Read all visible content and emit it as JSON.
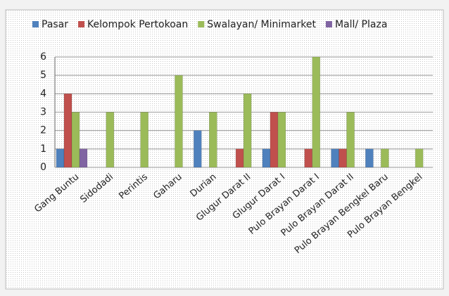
{
  "chart_data": {
    "type": "bar",
    "categories": [
      "Gang Buntu",
      "Sidodadi",
      "Perintis",
      "Gaharu",
      "Durian",
      "Glugur Darat II",
      "Glugur Darat I",
      "Pulo Brayan Darat I",
      "Pulo Brayan Darat II",
      "Pulo Brayan Bengkel Baru",
      "Pulo Brayan Bengkel"
    ],
    "series": [
      {
        "name": "Pasar",
        "color": "#4f81bd",
        "values": [
          1,
          0,
          0,
          0,
          2,
          0,
          1,
          0,
          1,
          1,
          0
        ]
      },
      {
        "name": "Kelompok Pertokoan",
        "color": "#c0504d",
        "values": [
          4,
          0,
          0,
          0,
          0,
          1,
          3,
          1,
          1,
          0,
          0
        ]
      },
      {
        "name": "Swalayan/ Minimarket",
        "color": "#9bbb59",
        "values": [
          3,
          3,
          3,
          5,
          3,
          4,
          3,
          6,
          3,
          1,
          1
        ]
      },
      {
        "name": "Mall/ Plaza",
        "color": "#8064a2",
        "values": [
          1,
          0,
          0,
          0,
          0,
          0,
          0,
          0,
          0,
          0,
          0
        ]
      }
    ],
    "ylim": [
      0,
      6
    ],
    "yticks": [
      0,
      1,
      2,
      3,
      4,
      5,
      6
    ],
    "grid": true,
    "legend": "top"
  }
}
